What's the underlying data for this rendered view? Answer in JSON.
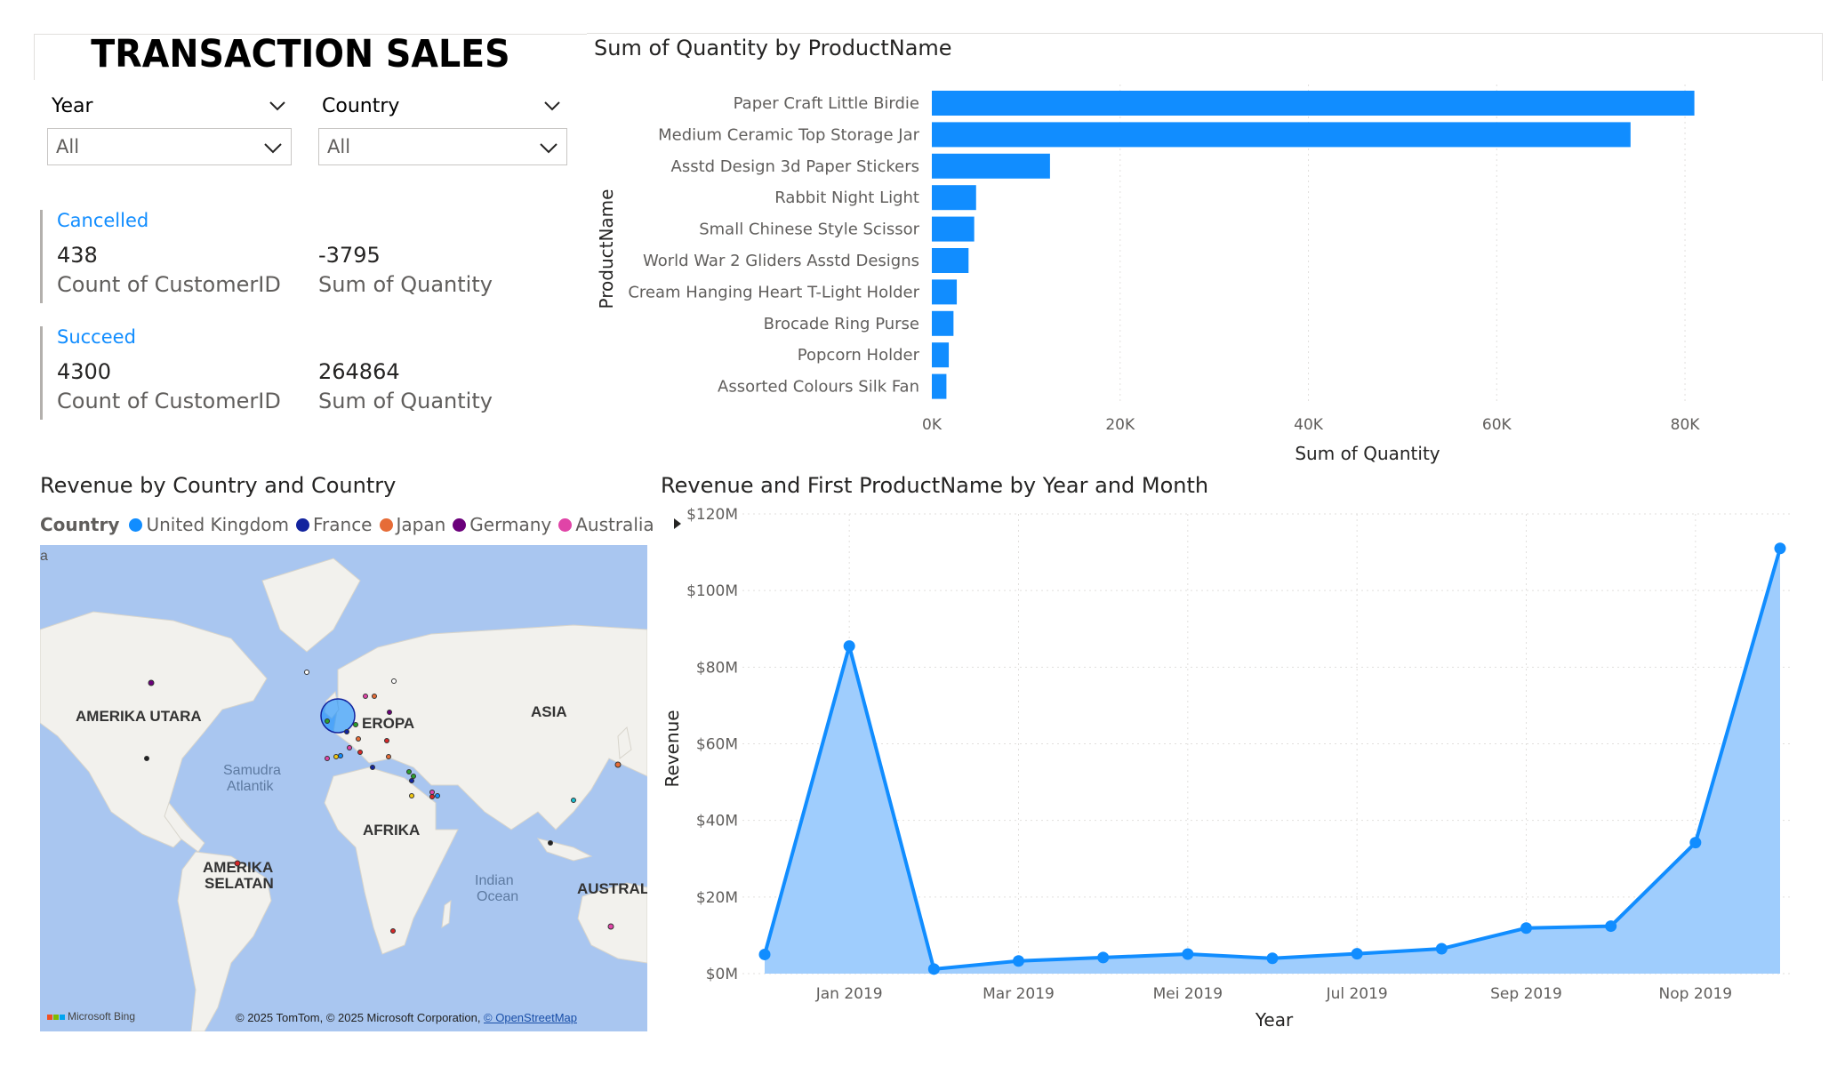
{
  "title": "TRANSACTION SALES",
  "slicers": {
    "year": {
      "label": "Year",
      "value": "All"
    },
    "country": {
      "label": "Country",
      "value": "All"
    }
  },
  "cards": {
    "cancelled": {
      "heading": "Cancelled",
      "count_value": "438",
      "count_label": "Count of CustomerID",
      "sum_value": "-3795",
      "sum_label": "Sum of Quantity"
    },
    "succeed": {
      "heading": "Succeed",
      "count_value": "4300",
      "count_label": "Count of CustomerID",
      "sum_value": "264864",
      "sum_label": "Sum of Quantity"
    }
  },
  "colors": {
    "accent": "#118dff",
    "area_fill": "#9fcdfd",
    "uk": "#118dff",
    "france": "#12239e",
    "japan": "#e66c37",
    "germany": "#6b007b",
    "australia": "#e044a7"
  },
  "bar_chart": {
    "title": "Sum of Quantity by ProductName",
    "chart_data": {
      "type": "bar",
      "orientation": "horizontal",
      "title": "Sum of Quantity by ProductName",
      "xlabel": "Sum of Quantity",
      "ylabel": "ProductName",
      "xlim": [
        0,
        85000
      ],
      "ticks": [
        "0K",
        "20K",
        "40K",
        "60K",
        "80K"
      ],
      "tick_values": [
        0,
        20000,
        40000,
        60000,
        80000
      ],
      "categories": [
        "Paper Craft Little Birdie",
        "Medium Ceramic Top Storage Jar",
        "Asstd Design 3d Paper Stickers",
        "Rabbit Night Light",
        "Small Chinese Style Scissor",
        "World War 2 Gliders Asstd Designs",
        "Cream Hanging Heart T-Light Holder",
        "Brocade Ring Purse",
        "Popcorn Holder",
        "Assorted Colours Silk Fan"
      ],
      "values": [
        80995,
        74215,
        12551,
        4700,
        4500,
        3900,
        2650,
        2300,
        1800,
        1550
      ],
      "grid": true
    }
  },
  "map": {
    "title": "Revenue by Country and Country",
    "legend_title": "Country",
    "legend_items": [
      {
        "name": "United Kingdom",
        "color": "#118dff"
      },
      {
        "name": "France",
        "color": "#12239e"
      },
      {
        "name": "Japan",
        "color": "#e66c37"
      },
      {
        "name": "Germany",
        "color": "#6b007b"
      },
      {
        "name": "Australia",
        "color": "#e044a7"
      }
    ],
    "labels": {
      "north_america": "AMERIKA UTARA",
      "europe": "EROPA",
      "asia": "ASIA",
      "atlantic_1": "Samudra",
      "atlantic_2": "Atlantik",
      "africa": "AFRIKA",
      "south_america_1": "AMERIKA",
      "south_america_2": "SELATAN",
      "indian_1": "Indian",
      "indian_2": "Ocean",
      "australia": "AUSTRAL",
      "corner": "a"
    },
    "attribution": "© 2025 TomTom, © 2025 Microsoft Corporation, ",
    "attribution_link": "© OpenStreetMap",
    "bing": "Microsoft Bing"
  },
  "line_chart": {
    "title": "Revenue and First ProductName by Year and Month",
    "chart_data": {
      "type": "area",
      "title": "Revenue and First ProductName by Year and Month",
      "xlabel": "Year",
      "ylabel": "Revenue",
      "ylim": [
        0,
        120
      ],
      "y_unit": "$M",
      "y_ticks": [
        "$0M",
        "$20M",
        "$40M",
        "$60M",
        "$80M",
        "$100M",
        "$120M"
      ],
      "y_tick_values": [
        0,
        20,
        40,
        60,
        80,
        100,
        120
      ],
      "x_tick_labels": [
        "Jan 2019",
        "Mar 2019",
        "Mei 2019",
        "Jul 2019",
        "Sep 2019",
        "Nop 2019"
      ],
      "x_tick_indices": [
        1,
        3,
        5,
        7,
        9,
        11
      ],
      "series": [
        {
          "values": [
            5.0,
            85.5,
            1.2,
            3.3,
            4.2,
            5.1,
            4.0,
            5.2,
            6.5,
            11.9,
            12.4,
            34.2,
            111.0
          ]
        }
      ],
      "grid": true
    }
  }
}
